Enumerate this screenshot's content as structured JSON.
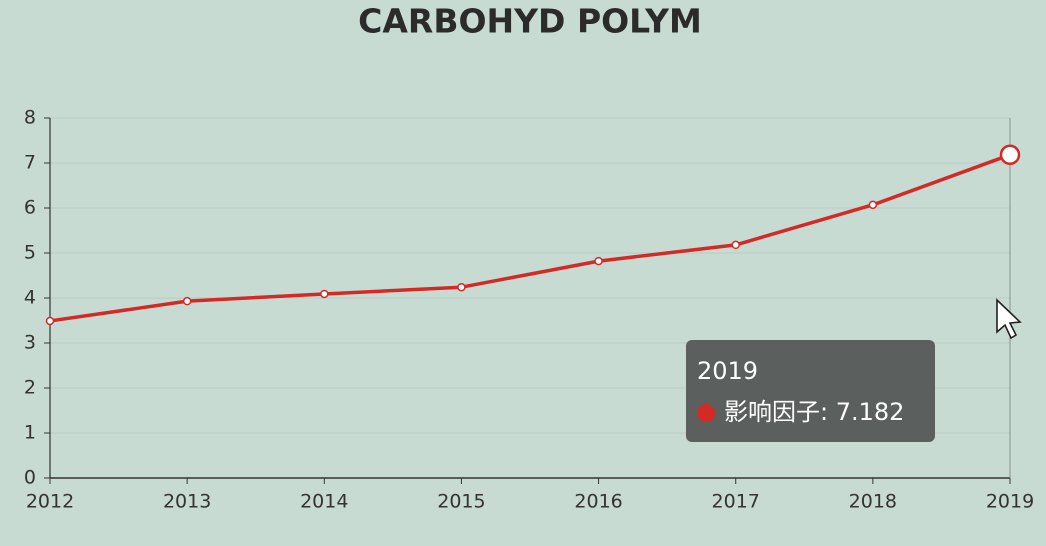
{
  "chart_data": {
    "type": "line",
    "title": "CARBOHYD POLYM",
    "categories": [
      "2012",
      "2013",
      "2014",
      "2015",
      "2016",
      "2017",
      "2018",
      "2019"
    ],
    "series": [
      {
        "name": "影响因子",
        "color": "#d42a26",
        "values": [
          3.49,
          3.93,
          4.09,
          4.24,
          4.82,
          5.18,
          6.07,
          7.182
        ]
      }
    ],
    "ylim": [
      0,
      8
    ],
    "yticks": [
      0,
      1,
      2,
      3,
      4,
      5,
      6,
      7,
      8
    ],
    "grid": true,
    "tooltip": {
      "title": "2019",
      "text": "影响因子: 7.182"
    }
  }
}
